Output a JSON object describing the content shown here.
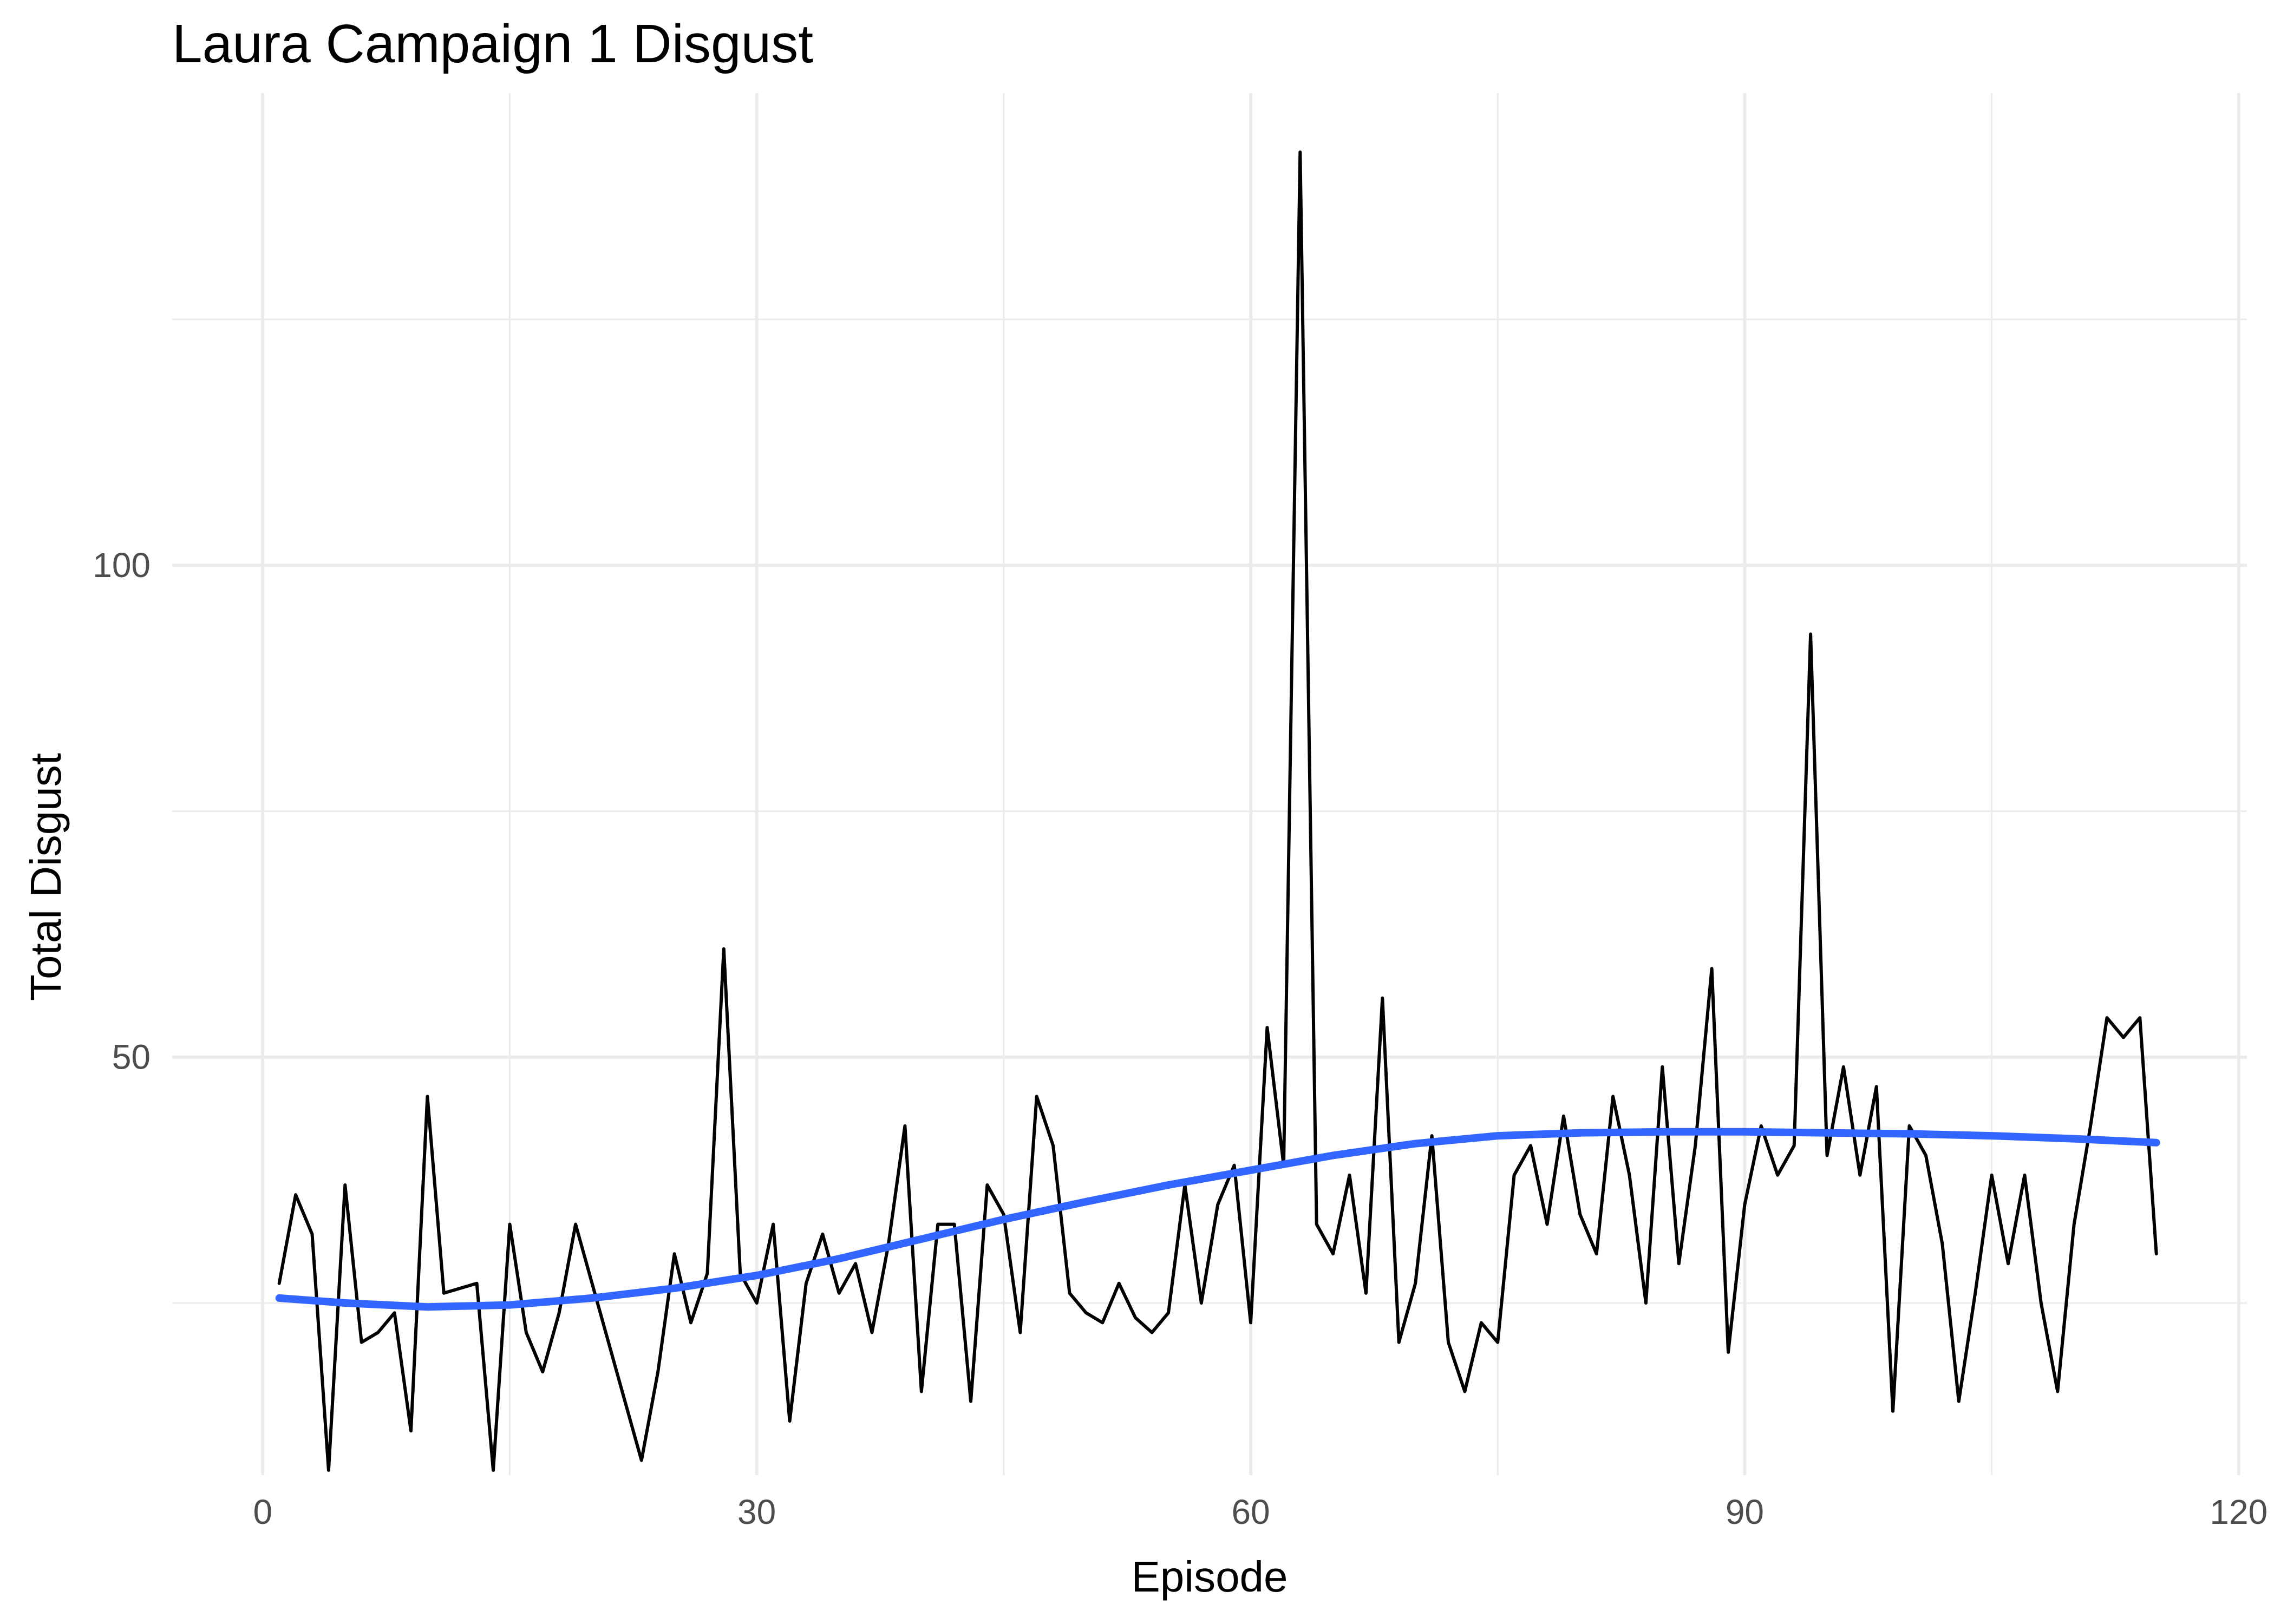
{
  "chart_data": {
    "type": "line",
    "title": "Laura Campaign 1 Disgust",
    "xlabel": "Episode",
    "ylabel": "Total Disgust",
    "xlim": [
      -5.5,
      120.5
    ],
    "ylim": [
      7.5,
      148
    ],
    "x_ticks": [
      0,
      30,
      60,
      90,
      120
    ],
    "y_ticks": [
      50,
      100
    ],
    "x_ticks_minor": [
      15,
      45,
      75,
      105
    ],
    "y_ticks_minor": [
      25,
      75,
      125
    ],
    "grid": true,
    "legend": "none",
    "series": [
      {
        "color": "#000000",
        "x": [
          1,
          2,
          3,
          4,
          5,
          6,
          7,
          8,
          9,
          10,
          11,
          12,
          13,
          14,
          15,
          16,
          17,
          18,
          19,
          20,
          21,
          22,
          23,
          24,
          25,
          26,
          27,
          28,
          29,
          30,
          31,
          32,
          33,
          34,
          35,
          36,
          37,
          38,
          39,
          40,
          41,
          42,
          43,
          44,
          45,
          46,
          47,
          48,
          49,
          50,
          51,
          52,
          53,
          54,
          55,
          56,
          57,
          58,
          59,
          60,
          61,
          62,
          63,
          64,
          65,
          66,
          67,
          68,
          69,
          70,
          71,
          72,
          73,
          74,
          75,
          76,
          77,
          78,
          79,
          80,
          81,
          82,
          83,
          84,
          85,
          86,
          87,
          88,
          89,
          90,
          91,
          92,
          93,
          94,
          95,
          96,
          97,
          98,
          99,
          100,
          101,
          102,
          103,
          104,
          105,
          106,
          107,
          108,
          109,
          110,
          111,
          112,
          113,
          114,
          115
        ],
        "y": [
          27,
          36,
          32,
          8,
          37,
          21,
          22,
          24,
          12,
          46,
          26,
          26.5,
          27,
          8,
          33,
          22,
          18,
          24,
          33,
          27,
          21,
          15,
          9,
          18,
          30,
          23,
          28,
          61,
          28,
          25,
          33,
          13,
          27,
          32,
          26,
          29,
          22,
          31,
          43,
          16,
          33,
          33,
          15,
          37,
          34,
          22,
          46,
          41,
          26,
          24,
          23,
          27,
          23.5,
          22,
          24,
          37,
          25,
          35,
          39,
          23,
          53,
          39,
          142,
          33,
          30,
          38,
          26,
          56,
          21,
          27,
          42,
          21,
          16,
          23,
          21,
          38,
          41,
          33,
          44,
          34,
          30,
          46,
          38,
          25,
          49,
          29,
          41,
          59,
          20,
          35,
          43,
          38,
          41,
          93,
          40,
          49,
          38,
          47,
          14,
          43,
          40,
          31,
          15,
          26,
          38,
          29,
          38,
          25,
          16,
          33,
          43,
          54,
          52,
          54,
          30
        ]
      },
      {
        "color": "#3366FF",
        "x": [
          1,
          5,
          10,
          15,
          20,
          25,
          30,
          35,
          40,
          45,
          50,
          55,
          60,
          65,
          70,
          75,
          80,
          85,
          90,
          95,
          100,
          105,
          110,
          115
        ],
        "y": [
          25.5,
          25,
          24.6,
          24.8,
          25.5,
          26.5,
          27.8,
          29.5,
          31.5,
          33.5,
          35.3,
          37,
          38.5,
          40,
          41.2,
          42,
          42.3,
          42.4,
          42.4,
          42.3,
          42.2,
          42,
          41.7,
          41.3
        ]
      }
    ]
  }
}
